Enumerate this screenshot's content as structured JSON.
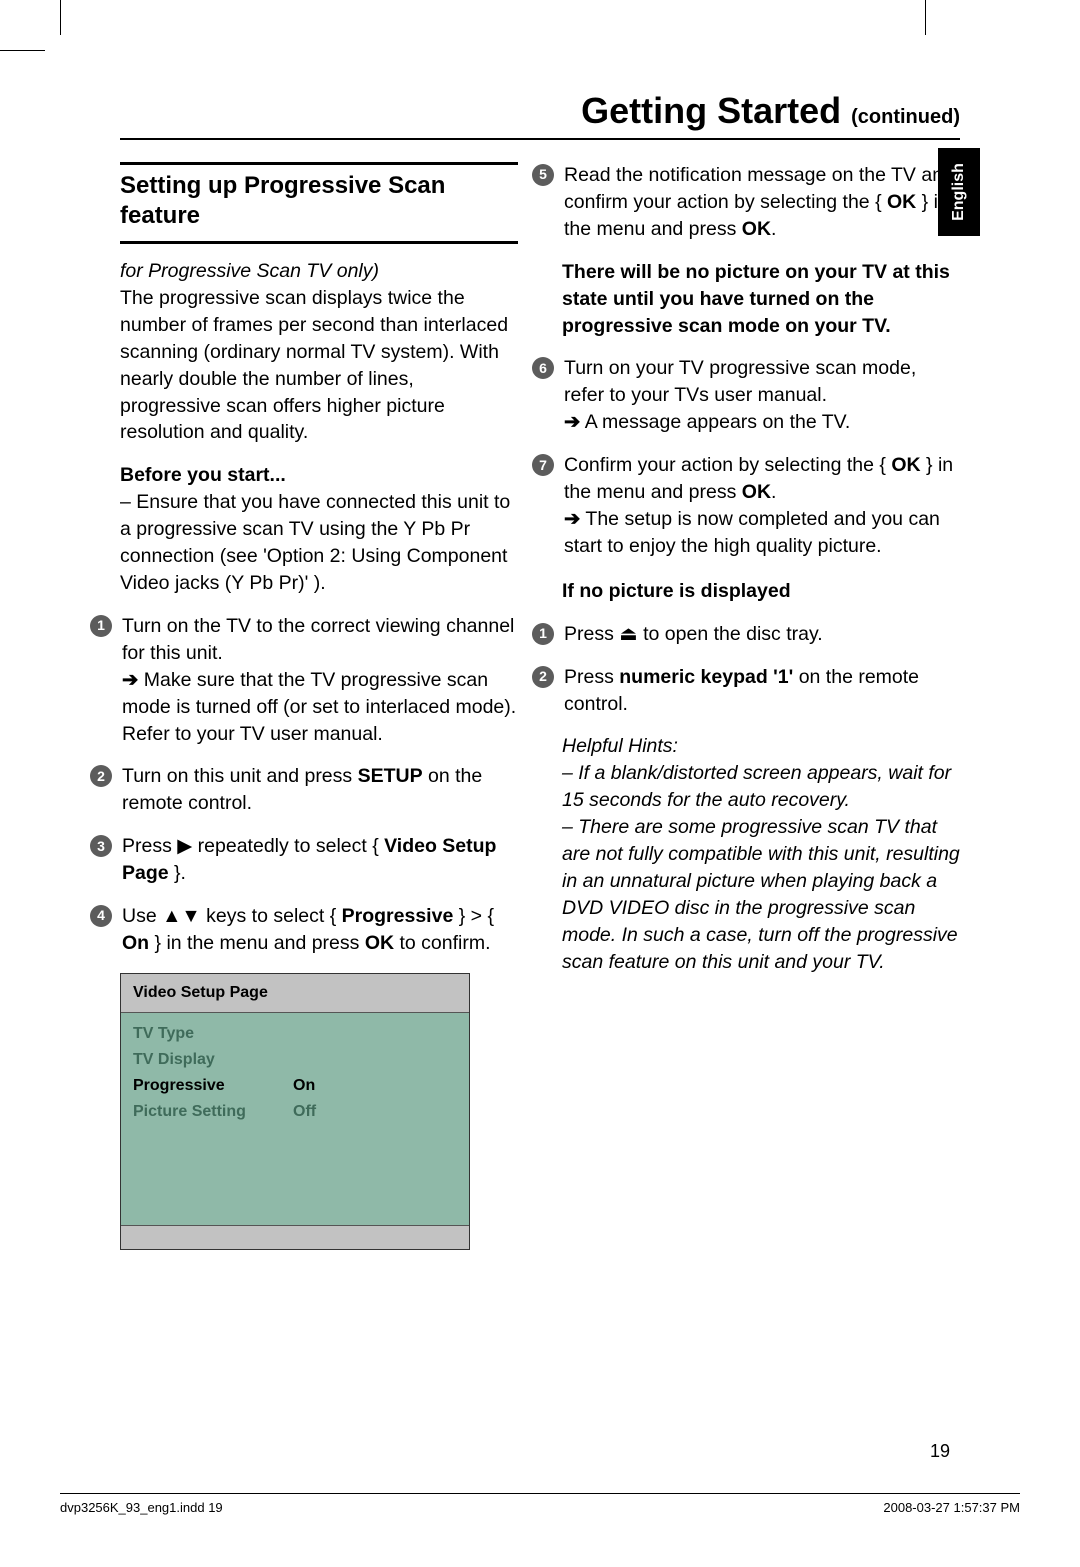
{
  "header": {
    "title": "Getting Started",
    "sub": "(continued)"
  },
  "lang_tab": "English",
  "section_title": "Setting up Progressive Scan feature",
  "intro_italic": "for Progressive Scan TV only)",
  "intro_body": "The progressive scan displays twice the number of frames per second than interlaced scanning (ordinary normal TV system). With nearly double the number of lines, progressive scan offers higher picture resolution and quality.",
  "before_title": "Before you start...",
  "before_body": "–  Ensure that you have connected this unit to a progressive scan TV using the Y Pb Pr connection (see 'Option 2: Using Component Video jacks (Y Pb Pr)' ).",
  "left_steps": {
    "s1a": "Turn on the TV to the correct viewing channel for this unit.",
    "s1b_pre": "Make sure that the TV progressive scan mode is turned off (or set to interlaced mode). Refer to your TV user manual.",
    "s2_pre": "Turn on this unit and press ",
    "s2_b": "SETUP",
    "s2_post": " on the remote control.",
    "s3_pre": "Press ",
    "s3_mid": " repeatedly to select { ",
    "s3_b": "Video Setup Page",
    "s3_post": " }.",
    "s4_pre": "Use ",
    "s4_mid": " keys to select { ",
    "s4_b1": "Progressive",
    "s4_mid2": " } > { ",
    "s4_b2": "On",
    "s4_post": " } in the menu and press ",
    "s4_b3": "OK",
    "s4_end": " to confirm."
  },
  "right": {
    "s5_pre": "Read the notification message on the TV and confirm your action by selecting the { ",
    "s5_b1": "OK",
    "s5_mid": " } in the menu and press ",
    "s5_b2": "OK",
    "s5_end": ".",
    "warn": "There will be no picture on your TV at this state until you have turned on the progressive scan mode on your TV.",
    "s6a": "Turn on your TV progressive scan mode, refer to your TVs user manual.",
    "s6b": "A message appears on the TV.",
    "s7_pre": "Confirm your action by selecting the { ",
    "s7_b1": "OK",
    "s7_mid": " } in the menu and press ",
    "s7_b2": "OK",
    "s7_end": ".",
    "s7_sub": "The setup is now completed and you can start to enjoy the high quality picture.",
    "nopic_title": "If no picture is displayed",
    "np1_pre": "Press ",
    "np1_post": " to open the disc tray.",
    "np2_pre": "Press ",
    "np2_b": "numeric keypad '1'",
    "np2_post": " on the remote control.",
    "hints_title": "Helpful Hints:",
    "hint1": "–  If a blank/distorted screen appears, wait for 15 seconds for the auto recovery.",
    "hint2": "–  There are some progressive scan TV that are not fully compatible with this unit, resulting in an unnatural picture when playing back a DVD VIDEO disc in the progressive scan mode. In such a case, turn off the progressive scan feature on this unit and your TV."
  },
  "menu": {
    "header": "Video Setup Page",
    "rows": [
      {
        "left": "TV Type",
        "right": "",
        "sel": false
      },
      {
        "left": "TV Display",
        "right": "",
        "sel": false
      },
      {
        "left": "Progressive",
        "right": "On",
        "sel": true
      },
      {
        "left": "Picture Setting",
        "right": "Off",
        "sel": false
      }
    ],
    "colors": {
      "header_bg": "#c2c2c2",
      "body_bg": "#8fb9a8",
      "dim_text": "#3f6b5a",
      "sel_text": "#000000"
    }
  },
  "page_num": "19",
  "footer": {
    "left": "dvp3256K_93_eng1.indd   19",
    "right": "2008-03-27   1:57:37 PM"
  },
  "symbols": {
    "right_tri": "▶",
    "up_tri": "▲",
    "down_tri": "▼",
    "eject": "⏏",
    "arrow": "➔"
  }
}
